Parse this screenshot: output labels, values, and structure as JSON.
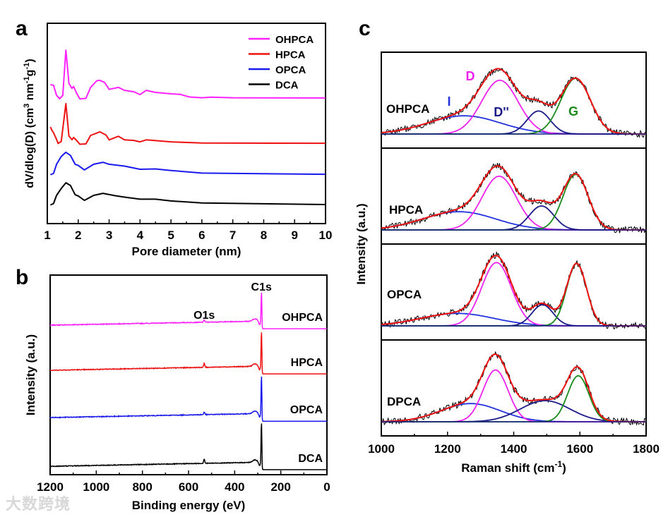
{
  "watermark": "大数跨境",
  "chart_data": [
    {
      "panel": "a",
      "type": "line",
      "xlabel": "Pore diameter (nm)",
      "ylabel_parts": [
        {
          "t": "dV/dlog(D) (cm"
        },
        {
          "t": "3",
          "sup": true
        },
        {
          "t": " nm"
        },
        {
          "t": "-1",
          "sup": true
        },
        {
          "t": "g"
        },
        {
          "t": "-1",
          "sup": true
        },
        {
          "t": ")"
        }
      ],
      "xlim": [
        1,
        10
      ],
      "ylim": [
        0,
        100
      ],
      "xticks": [
        "1",
        "2",
        "3",
        "4",
        "5",
        "6",
        "7",
        "8",
        "9",
        "10"
      ],
      "yticks_shown": false,
      "legend": "top-right",
      "series": [
        {
          "name": "OHPCA",
          "color": "#ff22ff",
          "points": [
            [
              1.1,
              69.4
            ],
            [
              1.2,
              69
            ],
            [
              1.3,
              64
            ],
            [
              1.4,
              62.3
            ],
            [
              1.5,
              64
            ],
            [
              1.6,
              86.6
            ],
            [
              1.7,
              70
            ],
            [
              1.8,
              67.5
            ],
            [
              1.85,
              68.5
            ],
            [
              1.95,
              65
            ],
            [
              2.05,
              62.3
            ],
            [
              2.25,
              62.5
            ],
            [
              2.4,
              68
            ],
            [
              2.6,
              71.3
            ],
            [
              2.7,
              71.5
            ],
            [
              2.85,
              70.5
            ],
            [
              3.0,
              67
            ],
            [
              3.3,
              68
            ],
            [
              3.5,
              66.5
            ],
            [
              3.8,
              65.8
            ],
            [
              4.0,
              64.4
            ],
            [
              4.2,
              66.5
            ],
            [
              4.5,
              65.5
            ],
            [
              5.0,
              64.8
            ],
            [
              5.3,
              64.5
            ],
            [
              5.6,
              63.2
            ],
            [
              6.0,
              62.8
            ],
            [
              6.3,
              63.1
            ],
            [
              7,
              62.8
            ],
            [
              10,
              62.7
            ]
          ]
        },
        {
          "name": "HPCA",
          "color": "#ee1111",
          "points": [
            [
              1.1,
              48.2
            ],
            [
              1.15,
              46.5
            ],
            [
              1.2,
              45.4
            ],
            [
              1.3,
              42
            ],
            [
              1.35,
              40
            ],
            [
              1.45,
              41
            ],
            [
              1.6,
              59.9
            ],
            [
              1.7,
              43.7
            ],
            [
              1.8,
              41.9
            ],
            [
              1.85,
              43
            ],
            [
              1.95,
              41.5
            ],
            [
              2.05,
              39.6
            ],
            [
              2.25,
              39.8
            ],
            [
              2.4,
              44
            ],
            [
              2.7,
              45.8
            ],
            [
              2.9,
              44.2
            ],
            [
              3.0,
              41.8
            ],
            [
              3.3,
              43.6
            ],
            [
              3.5,
              41.8
            ],
            [
              3.8,
              41.5
            ],
            [
              4.0,
              40.8
            ],
            [
              4.2,
              41.8
            ],
            [
              5.0,
              40.8
            ],
            [
              6.0,
              40.2
            ],
            [
              10,
              40.1
            ]
          ]
        },
        {
          "name": "OPCA",
          "color": "#1a1aee",
          "points": [
            [
              1.1,
              24.4
            ],
            [
              1.2,
              25
            ],
            [
              1.3,
              29.6
            ],
            [
              1.45,
              33.5
            ],
            [
              1.6,
              35.6
            ],
            [
              1.75,
              34
            ],
            [
              1.9,
              29.6
            ],
            [
              2.0,
              29
            ],
            [
              2.2,
              26.8
            ],
            [
              2.5,
              29.6
            ],
            [
              2.8,
              30.6
            ],
            [
              3.0,
              29.6
            ],
            [
              3.5,
              28.7
            ],
            [
              4.0,
              27.1
            ],
            [
              4.5,
              27.3
            ],
            [
              5.0,
              26.5
            ],
            [
              6.0,
              25.2
            ],
            [
              10,
              24.6
            ]
          ]
        },
        {
          "name": "DCA",
          "color": "#000000",
          "points": [
            [
              1.1,
              9.3
            ],
            [
              1.2,
              10
            ],
            [
              1.3,
              14.1
            ],
            [
              1.45,
              17.5
            ],
            [
              1.6,
              20.4
            ],
            [
              1.75,
              19
            ],
            [
              1.9,
              14.4
            ],
            [
              2.0,
              13.8
            ],
            [
              2.2,
              11.6
            ],
            [
              2.5,
              14.1
            ],
            [
              2.8,
              15.1
            ],
            [
              3.2,
              13.9
            ],
            [
              3.5,
              13.2
            ],
            [
              4.0,
              12.2
            ],
            [
              4.5,
              12.2
            ],
            [
              5.0,
              11.3
            ],
            [
              6.0,
              10.3
            ],
            [
              10,
              9.5
            ]
          ]
        }
      ]
    },
    {
      "panel": "b",
      "type": "line",
      "xlabel": "Binding energy (eV)",
      "ylabel": "Intensity (a.u.)",
      "xlim": [
        1200,
        0
      ],
      "ylim": [
        0,
        100
      ],
      "xticks": [
        "1200",
        "1000",
        "800",
        "600",
        "400",
        "200",
        "0"
      ],
      "annotations": [
        {
          "text": "C1s",
          "x": 284
        },
        {
          "text": "O1s",
          "x": 532
        }
      ],
      "series": [
        {
          "name": "OHPCA",
          "color": "#ff22ff",
          "baseline_left": 74.9,
          "baseline_right": 73.1,
          "peak_c1s": 92.2,
          "o1s_height": 1.2
        },
        {
          "name": "HPCA",
          "color": "#ee1111",
          "baseline_left": 52.3,
          "baseline_right": 50.5,
          "peak_c1s": 72.1,
          "o1s_height": 2.0
        },
        {
          "name": "OPCA",
          "color": "#1a1aee",
          "baseline_left": 28.6,
          "baseline_right": 26.8,
          "peak_c1s": 50.2,
          "o1s_height": 1.3
        },
        {
          "name": "DCA",
          "color": "#000000",
          "baseline_left": 4.2,
          "baseline_right": 2.5,
          "peak_c1s": 26.9,
          "o1s_height": 2.2
        }
      ]
    },
    {
      "panel": "c",
      "type": "line",
      "xlabel_parts": [
        {
          "t": "Raman shift (cm"
        },
        {
          "t": "-1",
          "sup": true
        },
        {
          "t": ")"
        }
      ],
      "ylabel": "Intensity (a.u.)",
      "xlim": [
        1000,
        1800
      ],
      "xticks": [
        "1000",
        "1200",
        "1400",
        "1600",
        "1800"
      ],
      "band_labels": [
        {
          "text": "I",
          "color": "#2233dd"
        },
        {
          "text": "D",
          "color": "#ee22ee"
        },
        {
          "text": "D''",
          "color": "#1a1a88"
        },
        {
          "text": "G",
          "color": "#1a8a1a"
        }
      ],
      "component_colors": {
        "I": "#2233dd",
        "D": "#ee22ee",
        "D''": "#1a1a88",
        "G": "#1a8a1a",
        "fit": "#ee1111",
        "raw": "#000000"
      },
      "samples": [
        {
          "name": "OHPCA",
          "components": {
            "I": [
              1250,
              110,
              0.19
            ],
            "D": [
              1358,
              55,
              0.56
            ],
            "D''": [
              1475,
              35,
              0.24
            ],
            "G": [
              1587,
              45,
              0.58
            ]
          }
        },
        {
          "name": "HPCA",
          "components": {
            "I": [
              1235,
              110,
              0.19
            ],
            "D": [
              1356,
              52,
              0.56
            ],
            "D''": [
              1484,
              37,
              0.25
            ],
            "G": [
              1587,
              38,
              0.58
            ]
          }
        },
        {
          "name": "OPCA",
          "components": {
            "I": [
              1230,
              110,
              0.13
            ],
            "D": [
              1348,
              45,
              0.66
            ],
            "D''": [
              1487,
              32,
              0.22
            ],
            "G": [
              1590,
              30,
              0.65
            ]
          }
        },
        {
          "name": "DPCA",
          "components": {
            "I": [
              1270,
              90,
              0.19
            ],
            "D": [
              1345,
              38,
              0.54
            ],
            "D''": [
              1495,
              75,
              0.22
            ],
            "G": [
              1595,
              32,
              0.48
            ]
          }
        }
      ],
      "component_format": "[center_cm-1, sigma_cm-1, relative_amplitude]"
    }
  ]
}
